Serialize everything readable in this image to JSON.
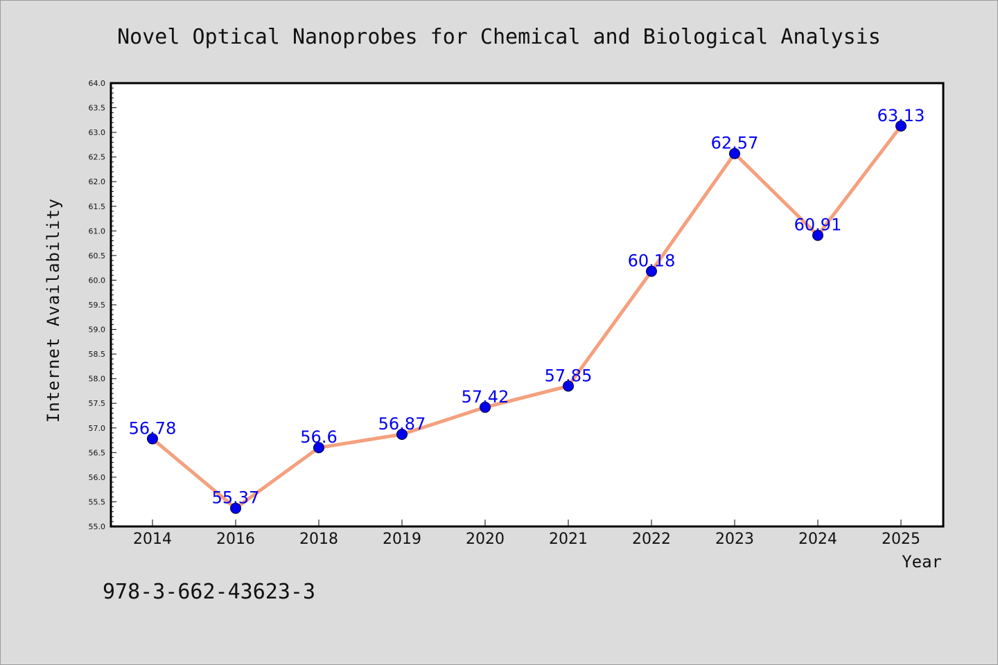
{
  "chart_data": {
    "type": "line",
    "title": "Novel Optical Nanoprobes for Chemical and Biological Analysis",
    "xlabel": "Year",
    "ylabel": "Internet Availability",
    "categories": [
      "2014",
      "2016",
      "2018",
      "2019",
      "2020",
      "2021",
      "2022",
      "2023",
      "2024",
      "2025"
    ],
    "values": [
      56.78,
      55.37,
      56.6,
      56.87,
      57.42,
      57.85,
      60.18,
      62.57,
      60.91,
      63.13
    ],
    "data_labels": [
      "56.78",
      "55.37",
      "56.6",
      "56.87",
      "57.42",
      "57.85",
      "60.18",
      "62.57",
      "60.91",
      "63.13"
    ],
    "ylim": [
      55.0,
      64.0
    ],
    "yticks": [
      "55.0",
      "55.5",
      "56.0",
      "56.5",
      "57.0",
      "57.5",
      "58.0",
      "58.5",
      "59.0",
      "59.5",
      "60.0",
      "60.5",
      "61.0",
      "61.5",
      "62.0",
      "62.5",
      "63.0",
      "63.5",
      "64.0"
    ],
    "grid": false,
    "line_color": "#f4a07e",
    "marker_color": "#0000ee",
    "label_color": "#0000ee"
  },
  "annotation": {
    "isbn": "978-3-662-43623-3"
  }
}
